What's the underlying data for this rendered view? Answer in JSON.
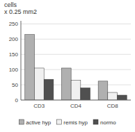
{
  "chart_data": {
    "type": "bar",
    "y_label": [
      "cells",
      "x 0.25 mm2"
    ],
    "categories": [
      "CD3",
      "CD4",
      "CD8"
    ],
    "series": [
      {
        "name": "active hyp",
        "color": "#b0b0b0",
        "values": [
          215,
          105,
          62
        ]
      },
      {
        "name": "remis hyp",
        "color": "#f0f0f0",
        "values": [
          105,
          65,
          25
        ]
      },
      {
        "name": "normo",
        "color": "#505050",
        "values": [
          68,
          40,
          16
        ]
      }
    ],
    "ylim": [
      0,
      260
    ],
    "yticks": [
      0,
      50,
      100,
      150,
      200,
      250
    ],
    "grid": true,
    "legend": "bottom"
  }
}
